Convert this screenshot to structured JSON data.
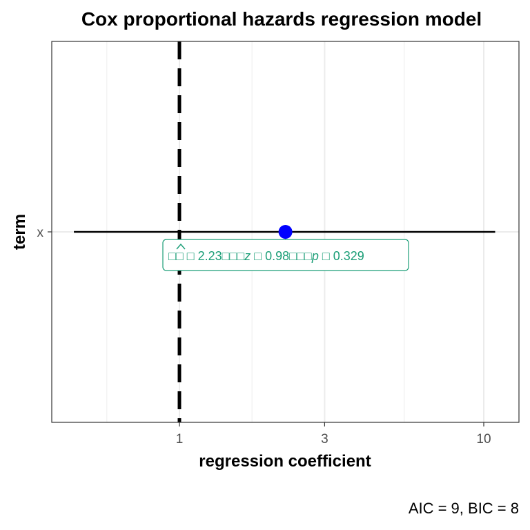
{
  "chart_data": {
    "type": "scatter",
    "title": "Cox proportional hazards regression model",
    "xlabel": "regression coefficient",
    "ylabel": "term",
    "x_scale": "log",
    "x_ticks": [
      1,
      3,
      10
    ],
    "xlim": [
      0.41,
      11.5
    ],
    "grid": true,
    "reference_line": {
      "x": 1,
      "style": "dashed"
    },
    "points": [
      {
        "term": "x",
        "estimate": 2.23,
        "conf_low": 0.45,
        "conf_high": 10.9,
        "label": {
          "estimate_text": "□□ □ 2.23□□□",
          "z_symbol": "z",
          "z_text": " □ 0.98□□□",
          "p_symbol": "p",
          "p_text": " □ 0.329"
        }
      }
    ],
    "colors": {
      "point": "#0000ff",
      "label": "#1b9e77",
      "line": "#000000"
    },
    "caption": "AIC = 9, BIC = 8"
  }
}
